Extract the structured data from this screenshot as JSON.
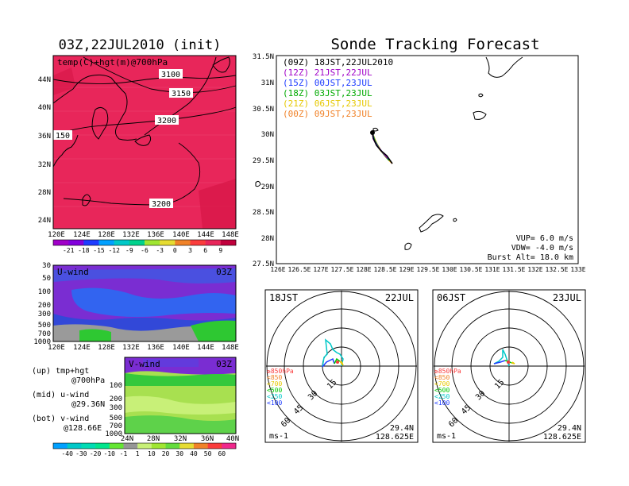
{
  "left_title": "03Z,22JUL2010 (init)",
  "right_title": "Sonde Tracking Forecast",
  "top_map": {
    "label": "temp(C)+hgt(m)@700hPa",
    "contours": [
      "3100",
      "3150",
      "3200",
      "3200",
      "150"
    ],
    "lat_ticks": [
      "44N",
      "40N",
      "36N",
      "32N",
      "28N",
      "24N"
    ],
    "lon_ticks": [
      "120E",
      "124E",
      "128E",
      "132E",
      "136E",
      "140E",
      "144E",
      "148E"
    ],
    "fill_color": "#e8265a"
  },
  "temp_colorbar": [
    "-21",
    "-18",
    "-15",
    "-12",
    "-9",
    "-6",
    "-3",
    "0",
    "3",
    "6",
    "9"
  ],
  "temp_colors": [
    "#a000c8",
    "#8200dc",
    "#1e3cff",
    "#00a0ff",
    "#00c8c8",
    "#00d28c",
    "#a0e632",
    "#e6dc32",
    "#f08228",
    "#fa3c3c",
    "#e8265a",
    "#c0003c"
  ],
  "u_panel": {
    "label": "U-wind",
    "time": "03Z",
    "levels": [
      "30",
      "50",
      "100",
      "200",
      "300",
      "500",
      "700",
      "1000"
    ],
    "lon_ticks": [
      "120E",
      "124E",
      "128E",
      "132E",
      "136E",
      "140E",
      "144E",
      "148E"
    ]
  },
  "v_panel": {
    "label": "V-wind",
    "time": "03Z",
    "levels": [
      "100",
      "200",
      "300",
      "500",
      "700",
      "1000"
    ],
    "lat_ticks": [
      "24N",
      "28N",
      "32N",
      "36N",
      "40N"
    ]
  },
  "side_labels": [
    {
      "a": "(up) tmp+hgt",
      "b": "@700hPa"
    },
    {
      "a": "(mid) u-wind",
      "b": "@29.36N"
    },
    {
      "a": "(bot) v-wind",
      "b": "@128.66E"
    }
  ],
  "wind_colorbar": [
    "-40",
    "-30",
    "-20",
    "-10",
    "-1",
    "1",
    "10",
    "20",
    "30",
    "40",
    "50",
    "60"
  ],
  "wind_colors": [
    "#00a0ff",
    "#00c8c8",
    "#00dcb4",
    "#00e68c",
    "#64e632",
    "#969696",
    "#c8f078",
    "#a0e632",
    "#64dc3c",
    "#e6dc32",
    "#f08228",
    "#fa3c3c",
    "#f0288c"
  ],
  "track_map": {
    "legend": [
      {
        "text": "(09Z)  18JST,22JUL2010",
        "color": "#000000"
      },
      {
        "text": "(12Z)  21JST,22JUL",
        "color": "#a000c8"
      },
      {
        "text": "(15Z)  00JST,23JUL",
        "color": "#1e3cff"
      },
      {
        "text": "(18Z)  03JST,23JUL",
        "color": "#00aa00"
      },
      {
        "text": "(21Z)  06JST,23JUL",
        "color": "#e6c800"
      },
      {
        "text": "(00Z)  09JST,23JUL",
        "color": "#f08228"
      }
    ],
    "lat_ticks": [
      "31.5N",
      "31N",
      "30.5N",
      "30N",
      "29.5N",
      "29N",
      "28.5N",
      "28N",
      "27.5N"
    ],
    "lon_ticks": [
      "126E",
      "126.5E",
      "127E",
      "127.5E",
      "128E",
      "128.5E",
      "129E",
      "129.5E",
      "130E",
      "130.5E",
      "131E",
      "131.5E",
      "132E",
      "132.5E",
      "133E"
    ],
    "info": [
      "VUP=  6.0  m/s",
      "VDW= -4.0  m/s",
      "Burst Alt= 18.0  km"
    ]
  },
  "hodo1": {
    "time": "18JST",
    "date": "22JUL",
    "rings": [
      "15",
      "30",
      "45",
      "60"
    ],
    "legend": [
      {
        "text": "≥850hPa",
        "color": "#fa3c3c"
      },
      {
        "text": "<850",
        "color": "#f08228"
      },
      {
        "text": "<700",
        "color": "#e6c800"
      },
      {
        "text": "<500",
        "color": "#00c800"
      },
      {
        "text": "<250",
        "color": "#00c8c8"
      },
      {
        "text": "<100",
        "color": "#1e3cff"
      }
    ],
    "unit": "ms-1",
    "lat": "29.4N",
    "lon": "128.625E"
  },
  "hodo2": {
    "time": "06JST",
    "date": "23JUL",
    "rings": [
      "15",
      "30",
      "45",
      "60"
    ],
    "legend": [
      {
        "text": "≥850hPa",
        "color": "#fa3c3c"
      },
      {
        "text": "<850",
        "color": "#f08228"
      },
      {
        "text": "<700",
        "color": "#e6c800"
      },
      {
        "text": "<500",
        "color": "#00c800"
      },
      {
        "text": "<250",
        "color": "#00c8c8"
      },
      {
        "text": "<100",
        "color": "#1e3cff"
      }
    ],
    "unit": "ms-1",
    "lat": "29.4N",
    "lon": "128.625E"
  }
}
